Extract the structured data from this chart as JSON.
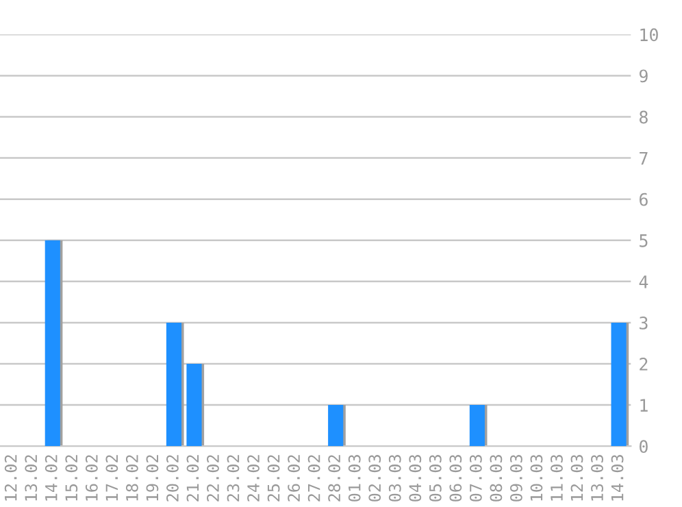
{
  "chart_data": {
    "type": "bar",
    "categories": [
      "12.02",
      "13.02",
      "14.02",
      "15.02",
      "16.02",
      "17.02",
      "18.02",
      "19.02",
      "20.02",
      "21.02",
      "22.02",
      "23.02",
      "24.02",
      "25.02",
      "26.02",
      "27.02",
      "28.02",
      "01.03",
      "02.03",
      "03.03",
      "04.03",
      "05.03",
      "06.03",
      "07.03",
      "08.03",
      "09.03",
      "10.03",
      "11.03",
      "12.03",
      "13.03",
      "14.03"
    ],
    "values": [
      0,
      0,
      5,
      0,
      0,
      0,
      0,
      0,
      3,
      2,
      0,
      0,
      0,
      0,
      0,
      0,
      1,
      0,
      0,
      0,
      0,
      0,
      0,
      1,
      0,
      0,
      0,
      0,
      0,
      0,
      3
    ],
    "color": "#1e90ff",
    "ylim": [
      0,
      10
    ],
    "yticks": [
      0,
      1,
      2,
      3,
      4,
      5,
      6,
      7,
      8,
      9,
      10
    ],
    "grid": "y",
    "legend": false
  }
}
